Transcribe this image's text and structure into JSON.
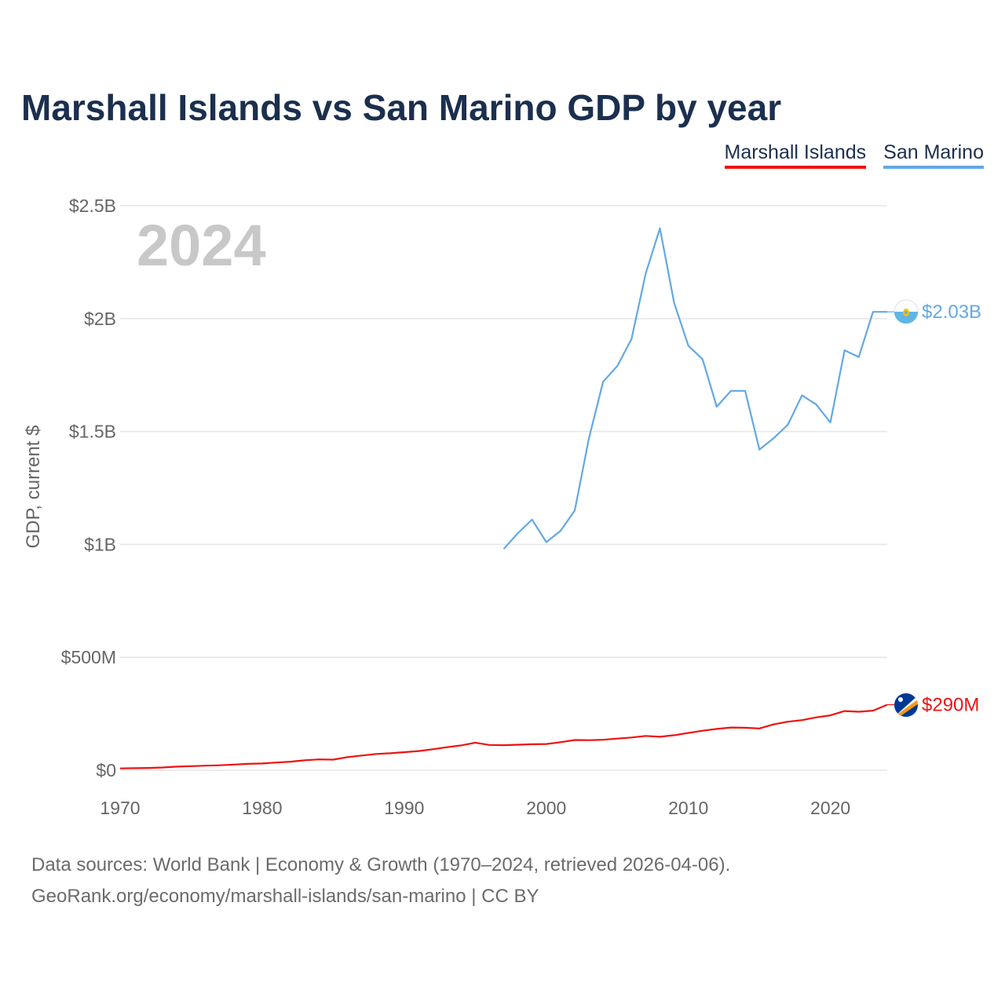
{
  "title": "Marshall Islands vs San Marino GDP by year",
  "legend": [
    {
      "label": "Marshall Islands",
      "color": "#ee1111"
    },
    {
      "label": "San Marino",
      "color": "#62a8e5"
    }
  ],
  "source": {
    "line1": "Data sources: World Bank | Economy & Growth (1970–2024, retrieved 2026-04-06).",
    "line2": "GeoRank.org/economy/marshall-islands/san-marino | CC BY"
  },
  "chart_data": {
    "type": "line",
    "title": "Marshall Islands vs San Marino GDP by year",
    "year_label": "2024",
    "xlabel": "",
    "ylabel": "GDP, current $",
    "xlim": [
      1970,
      2024
    ],
    "ylim": [
      0,
      2500000000
    ],
    "grid": true,
    "x_ticks": [
      1970,
      1980,
      1990,
      2000,
      2010,
      2020
    ],
    "y_ticks": [
      {
        "value": 0,
        "label": "$0"
      },
      {
        "value": 500000000,
        "label": "$500M"
      },
      {
        "value": 1000000000,
        "label": "$1B"
      },
      {
        "value": 1500000000,
        "label": "$1.5B"
      },
      {
        "value": 2000000000,
        "label": "$2B"
      },
      {
        "value": 2500000000,
        "label": "$2.5B"
      }
    ],
    "series": [
      {
        "name": "Marshall Islands",
        "color": "#ee1111",
        "end_label": "$290M",
        "x": [
          1970,
          1971,
          1972,
          1973,
          1974,
          1975,
          1976,
          1977,
          1978,
          1979,
          1980,
          1981,
          1982,
          1983,
          1984,
          1985,
          1986,
          1987,
          1988,
          1989,
          1990,
          1991,
          1992,
          1993,
          1994,
          1995,
          1996,
          1997,
          1998,
          1999,
          2000,
          2001,
          2002,
          2003,
          2004,
          2005,
          2006,
          2007,
          2008,
          2009,
          2010,
          2011,
          2012,
          2013,
          2014,
          2015,
          2016,
          2017,
          2018,
          2019,
          2020,
          2021,
          2022,
          2023,
          2024
        ],
        "values": [
          8000000,
          9000000,
          10000000,
          12000000,
          16000000,
          18000000,
          20000000,
          22000000,
          25000000,
          28000000,
          30000000,
          34000000,
          38000000,
          44000000,
          48000000,
          47000000,
          58000000,
          65000000,
          72000000,
          75000000,
          80000000,
          85000000,
          93000000,
          102000000,
          110000000,
          122000000,
          112000000,
          111000000,
          113000000,
          115000000,
          116000000,
          124000000,
          134000000,
          133000000,
          135000000,
          140000000,
          145000000,
          152000000,
          148000000,
          155000000,
          165000000,
          175000000,
          183000000,
          189000000,
          188000000,
          185000000,
          203000000,
          215000000,
          222000000,
          234000000,
          243000000,
          262000000,
          259000000,
          264000000,
          290000000
        ]
      },
      {
        "name": "San Marino",
        "color": "#62a8e5",
        "end_label": "$2.03B",
        "x": [
          1997,
          1998,
          1999,
          2000,
          2001,
          2002,
          2003,
          2004,
          2005,
          2006,
          2007,
          2008,
          2009,
          2010,
          2011,
          2012,
          2013,
          2014,
          2015,
          2016,
          2017,
          2018,
          2019,
          2020,
          2021,
          2022,
          2023,
          2024
        ],
        "values": [
          980000000,
          1050000000,
          1110000000,
          1010000000,
          1060000000,
          1150000000,
          1470000000,
          1720000000,
          1790000000,
          1910000000,
          2200000000,
          2400000000,
          2070000000,
          1880000000,
          1820000000,
          1610000000,
          1680000000,
          1680000000,
          1420000000,
          1470000000,
          1530000000,
          1660000000,
          1620000000,
          1540000000,
          1860000000,
          1830000000,
          2030000000,
          2030000000
        ]
      }
    ]
  }
}
